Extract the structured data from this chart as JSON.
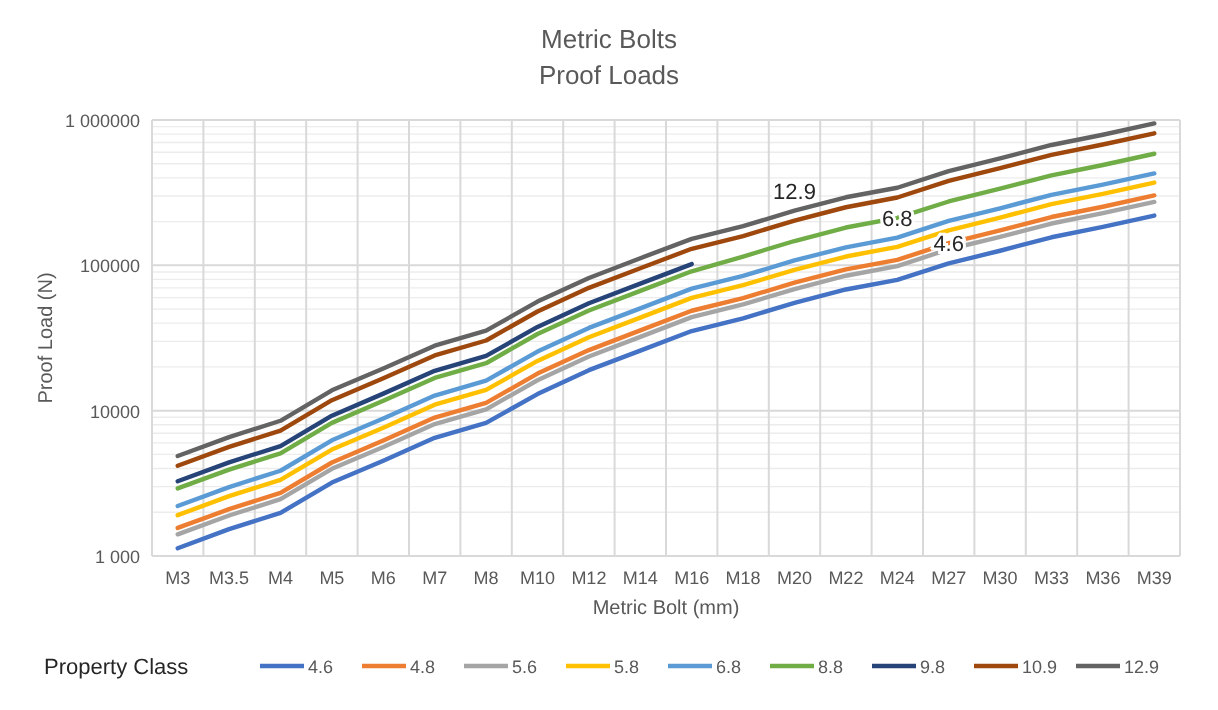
{
  "chart_data": {
    "type": "line",
    "title": "Metric Bolts",
    "subtitle": "Proof Loads",
    "xlabel": "Metric Bolt  (mm)",
    "ylabel": "Proof  Load (N)",
    "legend_title": "Property Class",
    "categories": [
      "M3",
      "M3.5",
      "M4",
      "M5",
      "M6",
      "M7",
      "M8",
      "M10",
      "M12",
      "M14",
      "M16",
      "M18",
      "M20",
      "M22",
      "M24",
      "M27",
      "M30",
      "M33",
      "M36",
      "M39"
    ],
    "series": [
      {
        "name": "4.6",
        "color": "#4472c4",
        "values": [
          1130,
          1530,
          1980,
          3200,
          4520,
          6500,
          8240,
          13000,
          19000,
          25900,
          35300,
          43200,
          55100,
          68200,
          79400,
          103000,
          126000,
          156000,
          184000,
          220000
        ]
      },
      {
        "name": "4.8",
        "color": "#ed7d31",
        "values": [
          1560,
          2100,
          2720,
          4400,
          6230,
          8960,
          11300,
          18000,
          26100,
          35700,
          48700,
          59500,
          76000,
          93900,
          109000,
          142000,
          174000,
          215000,
          253000,
          303000
        ]
      },
      {
        "name": "5.6",
        "color": "#a5a5a5",
        "values": [
          1410,
          1900,
          2460,
          3980,
          5630,
          8090,
          10200,
          16200,
          23600,
          32200,
          44000,
          53800,
          68600,
          84800,
          98800,
          129000,
          157000,
          194000,
          229000,
          273000
        ]
      },
      {
        "name": "5.8",
        "color": "#ffc000",
        "values": [
          1910,
          2580,
          3340,
          5400,
          7640,
          11000,
          13900,
          22000,
          32000,
          43700,
          59700,
          73000,
          93100,
          115000,
          134000,
          174000,
          213000,
          264000,
          310000,
          371000
        ]
      },
      {
        "name": "6.8",
        "color": "#5b9bd5",
        "values": [
          2210,
          2980,
          3860,
          6250,
          8840,
          12700,
          16100,
          25500,
          37100,
          50600,
          69100,
          84500,
          108000,
          133000,
          155000,
          202000,
          247000,
          305000,
          359000,
          429000
        ]
      },
      {
        "name": "8.8",
        "color": "#70ad47",
        "values": [
          2920,
          3930,
          5090,
          8240,
          11700,
          16800,
          21200,
          33700,
          48900,
          66700,
          91000,
          115000,
          147000,
          182000,
          212000,
          275000,
          337000,
          416000,
          490000,
          586000
        ]
      },
      {
        "name": "9.8",
        "color": "#264478",
        "values": [
          3270,
          4410,
          5710,
          9230,
          13100,
          18800,
          23800,
          37700,
          54800,
          74800,
          102000,
          null,
          null,
          null,
          null,
          null,
          null,
          null,
          null,
          null
        ]
      },
      {
        "name": "10.9",
        "color": "#9e480e",
        "values": [
          4180,
          5630,
          7290,
          11800,
          16700,
          24000,
          30400,
          48100,
          70000,
          95500,
          130000,
          159000,
          203000,
          251000,
          293000,
          381000,
          466000,
          576000,
          678000,
          810000
        ]
      },
      {
        "name": "12.9",
        "color": "#636363",
        "values": [
          4880,
          6580,
          8520,
          13800,
          19500,
          28000,
          35500,
          56300,
          81800,
          112000,
          152000,
          186000,
          238000,
          294000,
          342000,
          445000,
          544000,
          673000,
          792000,
          947000
        ]
      }
    ],
    "log": true,
    "ylim": [
      1000,
      1000000
    ],
    "yticks": [
      {
        "value": 1000,
        "label": "1 000"
      },
      10000,
      100000,
      {
        "value": 1000000,
        "label": "1 000000"
      }
    ],
    "grid": true,
    "legend": "bottom",
    "annotations": [
      {
        "text": "12.9",
        "x": "M20",
        "y": 238000
      },
      {
        "text": "6.8",
        "x": "M24",
        "y": 155000
      },
      {
        "text": "4.6",
        "x": "M27",
        "y": 103000
      }
    ]
  }
}
